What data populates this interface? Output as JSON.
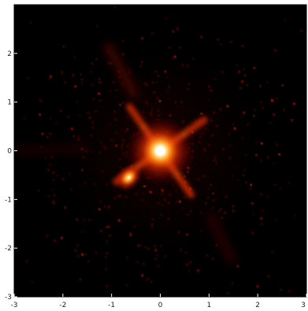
{
  "chart_data": {
    "type": "heatmap",
    "title": "",
    "xlabel": "",
    "ylabel": "",
    "xlim": [
      -3,
      3
    ],
    "ylim": [
      -3,
      3
    ],
    "x_ticks": [
      "-3",
      "-2",
      "-1",
      "0",
      "1",
      "2",
      "3"
    ],
    "y_ticks": [
      "2",
      "1",
      "0",
      "-1",
      "-2",
      "-3"
    ],
    "colormap": [
      "#000000",
      "#3a0000",
      "#8b0a00",
      "#d42a00",
      "#ff7a10",
      "#ffd060",
      "#ffffff"
    ],
    "sources": [
      {
        "x": 0.0,
        "y": 0.0,
        "intensity": 1.0,
        "label": ""
      },
      {
        "x": -0.65,
        "y": -0.55,
        "intensity": 0.55,
        "label": ""
      }
    ],
    "spikes_deg": [
      35,
      125,
      215,
      305
    ],
    "grid": false,
    "legend": "none"
  }
}
